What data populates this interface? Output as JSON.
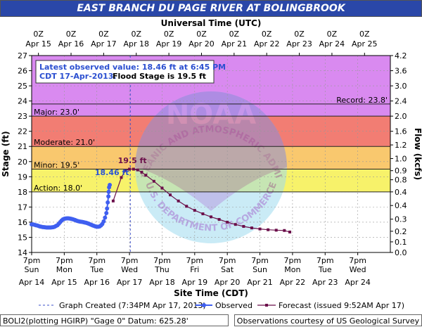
{
  "chart_data": {
    "type": "line",
    "title": "EAST BRANCH DU PAGE RIVER AT BOLINGBROOK",
    "top_axis_title": "Universal Time (UTC)",
    "bottom_axis_title": "Site Time (CDT)",
    "ylabel_left": "Stage (ft)",
    "ylabel_right": "Flow (kcfs)",
    "ylim": [
      14,
      27
    ],
    "yticks": [
      14,
      15,
      16,
      17,
      18,
      19,
      20,
      21,
      22,
      23,
      24,
      25,
      26,
      27
    ],
    "flow_ticks": [
      {
        "stage": 14,
        "label": "0.0"
      },
      {
        "stage": 14.7,
        "label": "0.1"
      },
      {
        "stage": 15.4,
        "label": "0.2"
      },
      {
        "stage": 16.2,
        "label": "0.3"
      },
      {
        "stage": 17.1,
        "label": "0.4"
      },
      {
        "stage": 18.0,
        "label": "0.4"
      },
      {
        "stage": 18.8,
        "label": "0.8"
      },
      {
        "stage": 19.4,
        "label": "0.9"
      },
      {
        "stage": 20.2,
        "label": "1.0"
      },
      {
        "stage": 21.1,
        "label": "1.2"
      },
      {
        "stage": 22.0,
        "label": "1.6"
      },
      {
        "stage": 23.0,
        "label": "2.0"
      },
      {
        "stage": 24.0,
        "label": "2.4"
      },
      {
        "stage": 25.0,
        "label": "3.0"
      },
      {
        "stage": 26.0,
        "label": "3.6"
      },
      {
        "stage": 27.0,
        "label": "4.2"
      }
    ],
    "bottom_ticks": [
      {
        "t": 0,
        "time": "7pm",
        "day": "Sun",
        "date": "Apr 14"
      },
      {
        "t": 24,
        "time": "7pm",
        "day": "Mon",
        "date": "Apr 15"
      },
      {
        "t": 48,
        "time": "7pm",
        "day": "Tue",
        "date": "Apr 16"
      },
      {
        "t": 72,
        "time": "7pm",
        "day": "Wed",
        "date": "Apr 17"
      },
      {
        "t": 96,
        "time": "7pm",
        "day": "Thu",
        "date": "Apr 18"
      },
      {
        "t": 120,
        "time": "7pm",
        "day": "Fri",
        "date": "Apr 19"
      },
      {
        "t": 144,
        "time": "7pm",
        "day": "Sat",
        "date": "Apr 20"
      },
      {
        "t": 168,
        "time": "7pm",
        "day": "Sun",
        "date": "Apr 21"
      },
      {
        "t": 192,
        "time": "7pm",
        "day": "Mon",
        "date": "Apr 22"
      },
      {
        "t": 216,
        "time": "7pm",
        "day": "Tue",
        "date": "Apr 23"
      },
      {
        "t": 240,
        "time": "7pm",
        "day": "Wed",
        "date": "Apr 24"
      }
    ],
    "top_ticks": [
      {
        "time": "0Z",
        "date": "Apr 15"
      },
      {
        "time": "0Z",
        "date": "Apr 16"
      },
      {
        "time": "0Z",
        "date": "Apr 17"
      },
      {
        "time": "0Z",
        "date": "Apr 18"
      },
      {
        "time": "0Z",
        "date": "Apr 19"
      },
      {
        "time": "0Z",
        "date": "Apr 20"
      },
      {
        "time": "0Z",
        "date": "Apr 21"
      },
      {
        "time": "0Z",
        "date": "Apr 22"
      },
      {
        "time": "0Z",
        "date": "Apr 23"
      },
      {
        "time": "0Z",
        "date": "Apr 24"
      },
      {
        "time": "0Z",
        "date": "Apr 25"
      }
    ],
    "bands": [
      {
        "from": 14,
        "to": 18,
        "color": "#ffffff"
      },
      {
        "from": 18,
        "to": 19.5,
        "color": "#f7f26a"
      },
      {
        "from": 19.5,
        "to": 21,
        "color": "#f9c86e"
      },
      {
        "from": 21,
        "to": 23,
        "color": "#f27d73"
      },
      {
        "from": 23,
        "to": 27,
        "color": "#d98af0"
      }
    ],
    "thresholds": [
      {
        "value": 18.0,
        "label": "Action: 18.0'"
      },
      {
        "value": 19.5,
        "label": "Minor: 19.5'"
      },
      {
        "value": 21.0,
        "label": "Moderate: 21.0'"
      },
      {
        "value": 23.0,
        "label": "Major: 23.0'"
      },
      {
        "value": 23.8,
        "label": "Record: 23.8'"
      }
    ],
    "observed": {
      "name": "Observed",
      "color": "#3f5ff0",
      "points": [
        [
          0,
          15.85
        ],
        [
          1,
          15.85
        ],
        [
          2,
          15.83
        ],
        [
          3,
          15.8
        ],
        [
          4,
          15.78
        ],
        [
          5,
          15.75
        ],
        [
          6,
          15.72
        ],
        [
          7,
          15.7
        ],
        [
          8,
          15.68
        ],
        [
          9,
          15.67
        ],
        [
          10,
          15.66
        ],
        [
          11,
          15.65
        ],
        [
          12,
          15.65
        ],
        [
          13,
          15.65
        ],
        [
          14,
          15.65
        ],
        [
          15,
          15.66
        ],
        [
          16,
          15.67
        ],
        [
          17,
          15.7
        ],
        [
          18,
          15.75
        ],
        [
          19,
          15.8
        ],
        [
          20,
          15.9
        ],
        [
          21,
          16.0
        ],
        [
          22,
          16.1
        ],
        [
          23,
          16.18
        ],
        [
          24,
          16.22
        ],
        [
          25,
          16.24
        ],
        [
          26,
          16.25
        ],
        [
          27,
          16.25
        ],
        [
          28,
          16.24
        ],
        [
          29,
          16.22
        ],
        [
          30,
          16.2
        ],
        [
          31,
          16.17
        ],
        [
          32,
          16.14
        ],
        [
          33,
          16.1
        ],
        [
          34,
          16.07
        ],
        [
          35,
          16.05
        ],
        [
          36,
          16.03
        ],
        [
          37,
          16.02
        ],
        [
          38,
          16.0
        ],
        [
          39,
          15.98
        ],
        [
          40,
          15.96
        ],
        [
          41,
          15.93
        ],
        [
          42,
          15.9
        ],
        [
          43,
          15.86
        ],
        [
          44,
          15.82
        ],
        [
          45,
          15.78
        ],
        [
          46,
          15.75
        ],
        [
          47,
          15.72
        ],
        [
          48,
          15.7
        ],
        [
          49,
          15.7
        ],
        [
          50,
          15.72
        ],
        [
          51,
          15.78
        ],
        [
          52,
          15.88
        ],
        [
          53,
          16.05
        ],
        [
          54,
          16.3
        ],
        [
          55,
          16.6
        ],
        [
          55.5,
          16.9
        ],
        [
          56,
          17.3
        ],
        [
          56.5,
          17.7
        ],
        [
          56.7,
          18.0
        ],
        [
          57,
          18.3
        ],
        [
          57.5,
          18.46
        ]
      ]
    },
    "forecast": {
      "name": "Forecast (issued 9:52AM Apr 17)",
      "color": "#6b0f4a",
      "points": [
        [
          60,
          17.4
        ],
        [
          66,
          18.95
        ],
        [
          69,
          19.4
        ],
        [
          72,
          19.5
        ],
        [
          75,
          19.5
        ],
        [
          78,
          19.45
        ],
        [
          81,
          19.3
        ],
        [
          84,
          19.1
        ],
        [
          90,
          18.7
        ],
        [
          96,
          18.25
        ],
        [
          102,
          17.8
        ],
        [
          108,
          17.4
        ],
        [
          114,
          17.05
        ],
        [
          120,
          16.78
        ],
        [
          126,
          16.55
        ],
        [
          132,
          16.35
        ],
        [
          138,
          16.18
        ],
        [
          144,
          16.0
        ],
        [
          150,
          15.85
        ],
        [
          156,
          15.72
        ],
        [
          162,
          15.62
        ],
        [
          168,
          15.55
        ],
        [
          174,
          15.5
        ],
        [
          180,
          15.47
        ],
        [
          186,
          15.45
        ],
        [
          190,
          15.35
        ]
      ]
    },
    "graph_created": {
      "t": 72.6,
      "label": "Graph Created (7:34PM Apr 17, 2013)"
    },
    "annotations": [
      {
        "text": "18.46 ft",
        "t": 46.5,
        "stage": 19.1,
        "color": "#2b55d4"
      },
      {
        "text": "19.5 ft",
        "t": 63.5,
        "stage": 19.9,
        "color": "#6b0f4a"
      }
    ],
    "info_box": {
      "line1": "Latest observed value: 18.46 ft at 6:45 PM",
      "line2a": "CDT 17-Apr-2013.",
      "line2b": "Flood Stage is 19.5 ft"
    },
    "legend": {
      "graph_created": "Graph Created (7:34PM Apr 17, 2013)",
      "observed": "Observed",
      "forecast": "Forecast (issued 9:52AM Apr 17)"
    },
    "watermark": {
      "top_text": "NATIONAL OCEANIC AND ATMOSPHERIC ADMINISTRATION",
      "bottom_text": "U.S. DEPARTMENT OF COMMERCE",
      "center": "NOAA"
    }
  },
  "footer": {
    "left": "BOLI2(plotting HGIRP) \"Gage 0\" Datum: 625.28'",
    "right": "Observations courtesy of US Geological Survey"
  },
  "colors": {
    "title_bg": "#2a47a8",
    "threshold_line": "#222222"
  }
}
